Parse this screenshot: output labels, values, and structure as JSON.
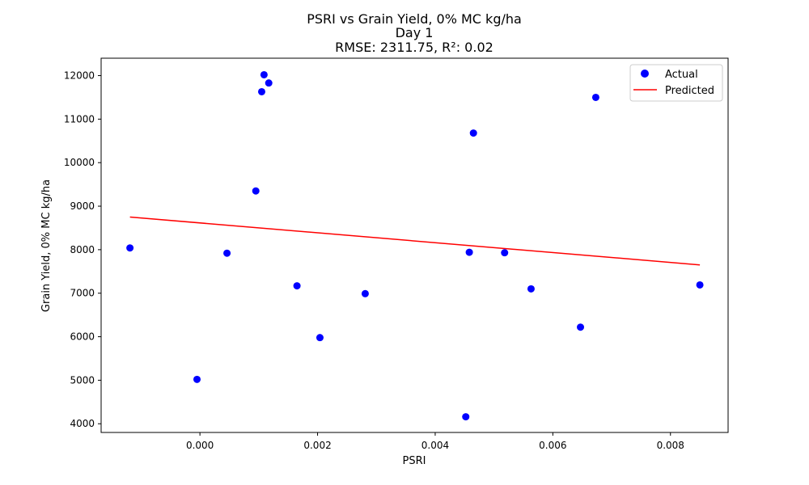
{
  "chart_data": {
    "type": "scatter",
    "title_lines": [
      "PSRI vs Grain Yield, 0% MC kg/ha",
      "Day 1",
      "RMSE: 2311.75, R²: 0.02"
    ],
    "xlabel": "PSRI",
    "ylabel": "Grain Yield, 0% MC kg/ha",
    "xlim": [
      -0.00168,
      0.00898
    ],
    "ylim": [
      3800,
      12400
    ],
    "xticks": [
      0.0,
      0.002,
      0.004,
      0.006,
      0.008
    ],
    "xtick_labels": [
      "0.000",
      "0.002",
      "0.004",
      "0.006",
      "0.008"
    ],
    "yticks": [
      4000,
      5000,
      6000,
      7000,
      8000,
      9000,
      10000,
      11000,
      12000
    ],
    "ytick_labels": [
      "4000",
      "5000",
      "6000",
      "7000",
      "8000",
      "9000",
      "10000",
      "11000",
      "12000"
    ],
    "grid": false,
    "legend_position": "top-right",
    "series": [
      {
        "name": "Actual",
        "kind": "scatter",
        "color": "#0000ff",
        "points": [
          {
            "x": -0.00119,
            "y": 8040
          },
          {
            "x": -5e-05,
            "y": 5020
          },
          {
            "x": 0.00046,
            "y": 7920
          },
          {
            "x": 0.00095,
            "y": 9350
          },
          {
            "x": 0.00105,
            "y": 11630
          },
          {
            "x": 0.00109,
            "y": 12020
          },
          {
            "x": 0.00117,
            "y": 11830
          },
          {
            "x": 0.00165,
            "y": 7170
          },
          {
            "x": 0.00204,
            "y": 5980
          },
          {
            "x": 0.00281,
            "y": 6990
          },
          {
            "x": 0.00452,
            "y": 4160
          },
          {
            "x": 0.00458,
            "y": 7940
          },
          {
            "x": 0.00465,
            "y": 10680
          },
          {
            "x": 0.00518,
            "y": 7930
          },
          {
            "x": 0.00563,
            "y": 7100
          },
          {
            "x": 0.00647,
            "y": 6220
          },
          {
            "x": 0.00673,
            "y": 11500
          },
          {
            "x": 0.0085,
            "y": 7190
          }
        ]
      },
      {
        "name": "Predicted",
        "kind": "line",
        "color": "#ff0000",
        "points": [
          {
            "x": -0.00119,
            "y": 8750
          },
          {
            "x": 0.0085,
            "y": 7650
          }
        ]
      }
    ]
  }
}
